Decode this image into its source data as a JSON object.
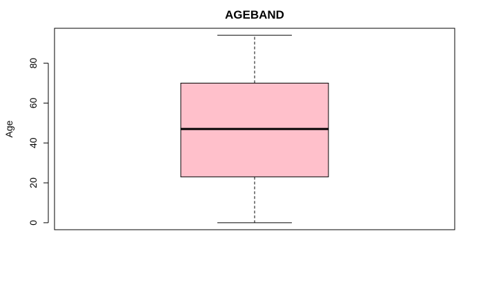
{
  "chart_data": {
    "type": "box",
    "title": "AGEBAND",
    "xlabel": "",
    "ylabel": "Age",
    "ylim": [
      -3.5,
      97.5
    ],
    "yticks": [
      0,
      20,
      40,
      60,
      80
    ],
    "grid": false,
    "legend": "none",
    "box": {
      "min": 0,
      "q1": 23,
      "median": 47,
      "q3": 70,
      "max": 94
    },
    "colors": {
      "box_fill": "#FFC0CB",
      "stroke": "#000000"
    }
  }
}
